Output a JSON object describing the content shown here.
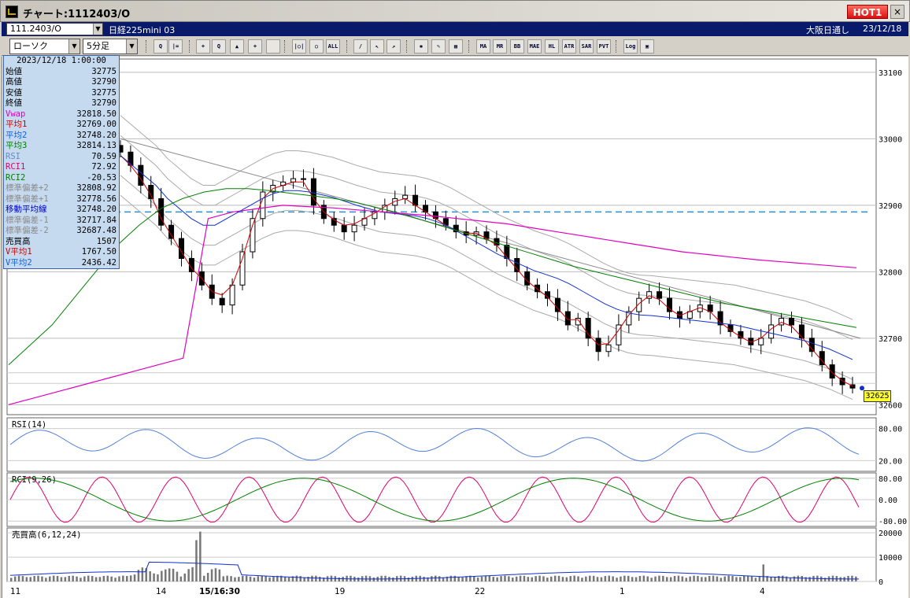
{
  "window": {
    "title": "チャート:1112403/O",
    "hot_label": "HOT1",
    "close_label": "×"
  },
  "infobar": {
    "symbol": "111.2403/O",
    "index_name": "日経225mini 03",
    "market": "大阪日通し",
    "date": "23/12/18"
  },
  "toolbar": {
    "chart_type": "ローソク",
    "timeframe": "5分足",
    "buttons": [
      {
        "name": "zoom-button",
        "icon": "magnifier-icon",
        "label": "Q"
      },
      {
        "name": "bar-button",
        "icon": "bars-icon",
        "label": "|="
      },
      {
        "name": "cross-button",
        "icon": "crosshair-icon",
        "label": "+"
      },
      {
        "name": "search-button",
        "icon": "search-icon",
        "label": "Q"
      },
      {
        "name": "chart-button",
        "icon": "chart-icon",
        "label": "▲"
      },
      {
        "name": "arrows-button",
        "icon": "arrows-icon",
        "label": "+"
      },
      {
        "name": "grey-button",
        "icon": "grey-icon",
        "label": ""
      },
      {
        "name": "candle-button",
        "icon": "candle-icon",
        "label": "|○|"
      },
      {
        "name": "candle2-button",
        "icon": "candle-icon",
        "label": "○"
      },
      {
        "name": "all-button",
        "icon": "all-icon",
        "label": "ALL"
      },
      {
        "name": "pen-button",
        "icon": "pen-icon",
        "label": "/"
      },
      {
        "name": "pointer-button",
        "icon": "pointer-icon",
        "label": "↖"
      },
      {
        "name": "line-button",
        "icon": "line-icon",
        "label": "↗"
      },
      {
        "name": "gear-button",
        "icon": "gear-icon",
        "label": "✱"
      },
      {
        "name": "brush-button",
        "icon": "brush-icon",
        "label": "✎"
      },
      {
        "name": "palette-button",
        "icon": "palette-icon",
        "label": "▦"
      },
      {
        "name": "ma-button",
        "icon": "ma-icon",
        "label": "MA"
      },
      {
        "name": "mr-button",
        "icon": "mr-icon",
        "label": "MR"
      },
      {
        "name": "bb-button",
        "icon": "bb-icon",
        "label": "BB"
      },
      {
        "name": "mae-button",
        "icon": "mae-icon",
        "label": "MAE"
      },
      {
        "name": "hl-button",
        "icon": "hl-icon",
        "label": "HL"
      },
      {
        "name": "atr-button",
        "icon": "atr-icon",
        "label": "ATR"
      },
      {
        "name": "sar-button",
        "icon": "sar-icon",
        "label": "SAR"
      },
      {
        "name": "pvt-button",
        "icon": "pvt-icon",
        "label": "PVT"
      },
      {
        "name": "log-button",
        "icon": "log-icon",
        "label": "Log"
      },
      {
        "name": "exit-button",
        "icon": "exit-icon",
        "label": "▣"
      }
    ]
  },
  "panel": {
    "datetime": "2023/12/18  1:00:00",
    "rows": [
      {
        "label": "始値",
        "value": "32775",
        "color": "#000000"
      },
      {
        "label": "高値",
        "value": "32790",
        "color": "#000000"
      },
      {
        "label": "安値",
        "value": "32775",
        "color": "#000000"
      },
      {
        "label": "終値",
        "value": "32790",
        "color": "#000000"
      },
      {
        "label": "Vwap",
        "value": "32818.50",
        "color": "#e000c0"
      },
      {
        "label": "平均1",
        "value": "32769.00",
        "color": "#d00000"
      },
      {
        "label": "平均2",
        "value": "32748.20",
        "color": "#1060e0"
      },
      {
        "label": "平均3",
        "value": "32814.13",
        "color": "#008000"
      },
      {
        "label": "RSI",
        "value": "70.59",
        "color": "#6a8ac8"
      },
      {
        "label": "RCI1",
        "value": "72.92",
        "color": "#e0006a"
      },
      {
        "label": "RCI2",
        "value": "-20.53",
        "color": "#008000"
      },
      {
        "label": "標準偏差+2",
        "value": "32808.92",
        "color": "#8a8a8a"
      },
      {
        "label": "標準偏差+1",
        "value": "32778.56",
        "color": "#8a8a8a"
      },
      {
        "label": "移動平均線",
        "value": "32748.20",
        "color": "#0000c0"
      },
      {
        "label": "標準偏差-1",
        "value": "32717.84",
        "color": "#8a8a8a"
      },
      {
        "label": "標準偏差-2",
        "value": "32687.48",
        "color": "#8a8a8a"
      },
      {
        "label": "売買高",
        "value": "1507",
        "color": "#000000"
      },
      {
        "label": "V平均1",
        "value": "1767.50",
        "color": "#d00000"
      },
      {
        "label": "V平均2",
        "value": "2436.42",
        "color": "#1060e0"
      }
    ]
  },
  "chart_data": [
    {
      "type": "candlestick",
      "title": "",
      "ylim": [
        32585,
        33120
      ],
      "yticks": [
        "33100",
        "33000",
        "32900",
        "32800",
        "32700",
        "32600"
      ],
      "xticks": [
        "11",
        "14",
        "15/16:30",
        "19",
        "22",
        "1",
        "4"
      ],
      "last_price": "32625",
      "dashed_level": 32890,
      "close": [
        32980,
        32960,
        32930,
        32910,
        32870,
        32850,
        32820,
        32800,
        32780,
        32760,
        32750,
        32780,
        32830,
        32880,
        32920,
        32930,
        32935,
        32940,
        32940,
        32900,
        32880,
        32870,
        32860,
        32870,
        32880,
        32890,
        32900,
        32910,
        32915,
        32900,
        32890,
        32880,
        32870,
        32860,
        32855,
        32860,
        32850,
        32840,
        32820,
        32800,
        32780,
        32770,
        32760,
        32740,
        32720,
        32730,
        32700,
        32680,
        32690,
        32720,
        32740,
        32760,
        32770,
        32760,
        32740,
        32730,
        32740,
        32750,
        32740,
        32720,
        32710,
        32700,
        32690,
        32700,
        32720,
        32730,
        32720,
        32700,
        32680,
        32660,
        32640,
        32630,
        32625
      ],
      "ma_fast": [
        32975,
        32960,
        32940,
        32915,
        32880,
        32855,
        32830,
        32805,
        32790,
        32770,
        32765,
        32780,
        32820,
        32870,
        32910,
        32925,
        32930,
        32935,
        32935,
        32910,
        32890,
        32878,
        32870,
        32872,
        32880,
        32888,
        32898,
        32906,
        32910,
        32900,
        32890,
        32880,
        32870,
        32862,
        32858,
        32858,
        32850,
        32840,
        32822,
        32804,
        32786,
        32774,
        32762,
        32745,
        32728,
        32728,
        32706,
        32690,
        32692,
        32712,
        32735,
        32752,
        32764,
        32758,
        32744,
        32734,
        32740,
        32746,
        32740,
        32724,
        32712,
        32702,
        32694,
        32700,
        32714,
        32724,
        32718,
        32702,
        32684,
        32666,
        32648,
        32636,
        32628
      ],
      "ma_mid": [
        32975,
        32960,
        32945,
        32930,
        32910,
        32895,
        32880,
        32870,
        32870,
        32880,
        32890,
        32900,
        32910,
        32918,
        32922,
        32922,
        32920,
        32916,
        32912,
        32906,
        32900,
        32895,
        32890,
        32888,
        32886,
        32884,
        32880,
        32874,
        32866,
        32856,
        32846,
        32836,
        32826,
        32818,
        32810,
        32802,
        32796,
        32790,
        32782,
        32772,
        32762,
        32752,
        32744,
        32738,
        32735,
        32734,
        32732,
        32730,
        32728,
        32726,
        32724,
        32722,
        32720,
        32716,
        32712,
        32708,
        32704,
        32700,
        32696,
        32690,
        32684,
        32676,
        32668
      ],
      "ma_slow": [
        32660,
        32690,
        32720,
        32760,
        32800,
        32840,
        32870,
        32895,
        32910,
        32920,
        32925,
        32925,
        32922,
        32918,
        32914,
        32910,
        32904,
        32896,
        32888,
        32878,
        32868,
        32858,
        32848,
        32838,
        32828,
        32818,
        32808,
        32800,
        32792,
        32784,
        32776,
        32768,
        32760,
        32752,
        32746,
        32740,
        32734,
        32728,
        32722,
        32716
      ],
      "vwap": [
        32600,
        32610,
        32620,
        32630,
        32640,
        32650,
        32660,
        32670,
        32880,
        32890,
        32895,
        32900,
        32898,
        32896,
        32893,
        32890,
        32887,
        32884,
        32880,
        32876,
        32872,
        32866,
        32860,
        32854,
        32848,
        32842,
        32836,
        32830,
        32826,
        32822,
        32818,
        32815,
        32812,
        32809,
        32806
      ],
      "rsi": {
        "label": "RSI(14)",
        "ylim": [
          0,
          100
        ],
        "yticks": [
          "80.00",
          "20.00"
        ]
      },
      "rci": {
        "label": "RCI(9,26)",
        "ylim": [
          -100,
          100
        ],
        "yticks": [
          "80.00",
          "0.00",
          "-80.00"
        ]
      },
      "volume": {
        "label": "売買高(6,12,24)",
        "ylim": [
          0,
          22000
        ],
        "yticks": [
          "20000",
          "10000",
          "0"
        ]
      }
    }
  ]
}
